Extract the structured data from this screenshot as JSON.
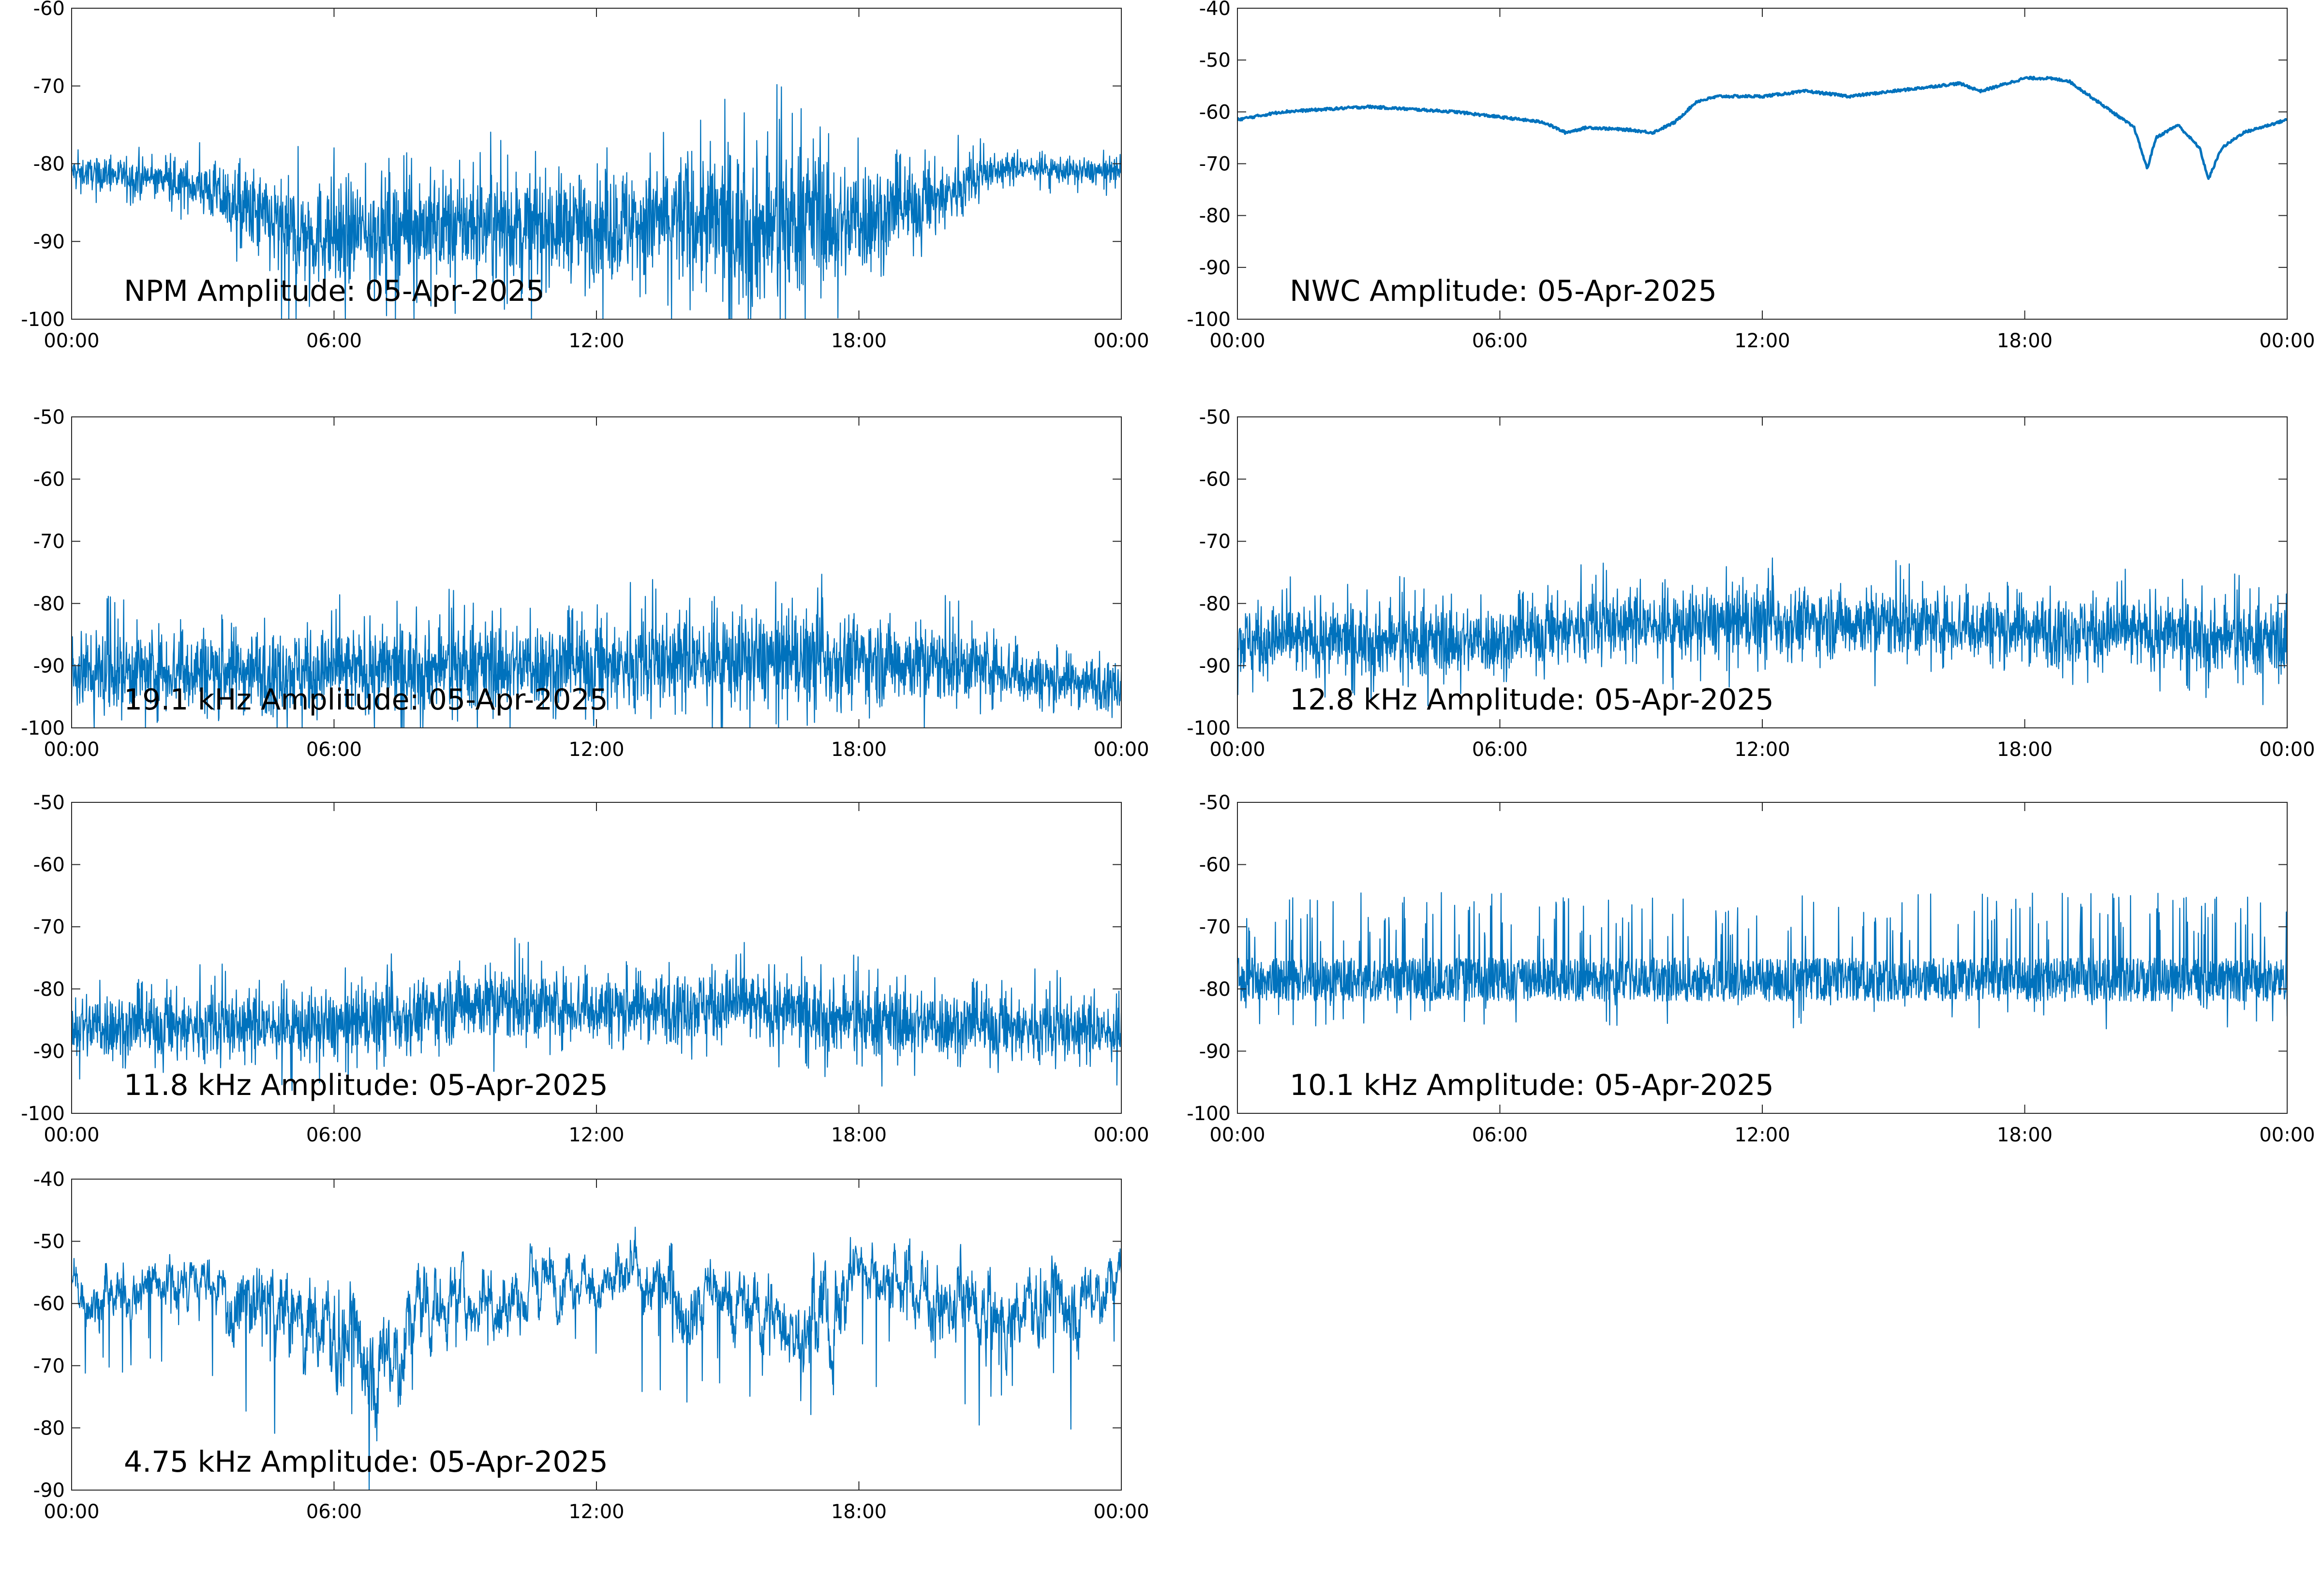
{
  "colors": {
    "series": "#0072bd",
    "axis": "#262626",
    "background": "#ffffff"
  },
  "chart_data": [
    {
      "type": "line",
      "label": "NPM Amplitude: 05-Apr-2025",
      "xticks": [
        "00:00",
        "06:00",
        "12:00",
        "18:00",
        "00:00"
      ],
      "ylim": [
        -100,
        -60
      ],
      "yticks": [
        -100,
        -90,
        -80,
        -70,
        -60
      ],
      "grid": false,
      "style": "noise",
      "x": [
        0,
        1,
        2,
        3,
        4,
        5,
        6,
        7,
        8,
        9,
        10,
        11,
        12,
        13,
        14,
        15,
        16,
        17,
        17.5,
        18,
        19,
        20,
        21,
        22,
        23,
        24
      ],
      "center": [
        -81,
        -81.5,
        -82,
        -83,
        -86,
        -89,
        -89,
        -88.5,
        -88,
        -88,
        -88,
        -88,
        -88,
        -87.5,
        -87,
        -88,
        -88.5,
        -86,
        -88,
        -87,
        -86,
        -84,
        -81,
        -80.5,
        -81,
        -81
      ],
      "spread": [
        1.5,
        2,
        2,
        3,
        5,
        6,
        6,
        6,
        6,
        6,
        6,
        6,
        6,
        7,
        8,
        9,
        9,
        8,
        7,
        7,
        5,
        4,
        2,
        1.5,
        1.5,
        1.5
      ]
    },
    {
      "type": "line",
      "label": "NWC Amplitude: 05-Apr-2025",
      "xticks": [
        "00:00",
        "06:00",
        "12:00",
        "18:00",
        "00:00"
      ],
      "ylim": [
        -100,
        -40
      ],
      "yticks": [
        -100,
        -90,
        -80,
        -70,
        -60,
        -50,
        -40
      ],
      "grid": false,
      "style": "smooth",
      "x": [
        0,
        1,
        2,
        3,
        4,
        5,
        6,
        7,
        7.5,
        8,
        9,
        9.5,
        10,
        10.5,
        11,
        12,
        13,
        14,
        15,
        16,
        16.5,
        17,
        18,
        18.5,
        19,
        19.5,
        20,
        20.5,
        20.8,
        21,
        21.5,
        22,
        22.2,
        22.5,
        23,
        24
      ],
      "center": [
        -61.5,
        -60,
        -59.5,
        -59,
        -59.5,
        -60,
        -61,
        -62,
        -64,
        -63,
        -63.5,
        -64,
        -62,
        -58,
        -57,
        -57,
        -56,
        -57,
        -56,
        -55,
        -54.5,
        -56,
        -53.5,
        -53.5,
        -54,
        -57,
        -60,
        -63,
        -71,
        -65,
        -62.5,
        -67,
        -73,
        -67,
        -64,
        -61.5
      ],
      "spread": [
        0.5
      ]
    },
    {
      "type": "line",
      "label": "19.1 kHz Amplitude: 05-Apr-2025",
      "xticks": [
        "00:00",
        "06:00",
        "12:00",
        "18:00",
        "00:00"
      ],
      "ylim": [
        -100,
        -50
      ],
      "yticks": [
        -100,
        -90,
        -80,
        -70,
        -60,
        -50
      ],
      "grid": false,
      "style": "noise",
      "x": [
        0,
        3,
        6,
        9,
        12,
        15,
        18,
        21,
        22,
        24
      ],
      "center": [
        -91,
        -90.5,
        -91,
        -90,
        -90,
        -89,
        -89,
        -90,
        -92,
        -93
      ],
      "spread": [
        6,
        6,
        6,
        6,
        6.5,
        7,
        6.5,
        5,
        4,
        3.5
      ]
    },
    {
      "type": "line",
      "label": "12.8 kHz Amplitude: 05-Apr-2025",
      "xticks": [
        "00:00",
        "06:00",
        "12:00",
        "18:00",
        "00:00"
      ],
      "ylim": [
        -100,
        -50
      ],
      "yticks": [
        -100,
        -90,
        -80,
        -70,
        -60,
        -50
      ],
      "grid": false,
      "style": "noise",
      "x": [
        0,
        3,
        6,
        8,
        10,
        12,
        15,
        18,
        21,
        24
      ],
      "center": [
        -86,
        -86,
        -86,
        -83.5,
        -83.5,
        -83,
        -83,
        -84,
        -85,
        -86
      ],
      "spread": [
        5,
        5,
        5,
        5,
        5,
        5,
        5,
        5,
        5,
        5
      ]
    },
    {
      "type": "line",
      "label": "11.8 kHz Amplitude: 05-Apr-2025",
      "xticks": [
        "00:00",
        "06:00",
        "12:00",
        "18:00",
        "00:00"
      ],
      "ylim": [
        -100,
        -50
      ],
      "yticks": [
        -100,
        -90,
        -80,
        -70,
        -60,
        -50
      ],
      "grid": false,
      "style": "noise",
      "x": [
        0,
        3,
        6,
        8,
        9,
        12,
        15,
        18,
        21,
        24
      ],
      "center": [
        -86,
        -86,
        -86,
        -84,
        -82,
        -83,
        -82.5,
        -85,
        -86,
        -87
      ],
      "spread": [
        5,
        5,
        5,
        5,
        5.5,
        5,
        5,
        5,
        5,
        4.5
      ]
    },
    {
      "type": "line",
      "label": "10.1 kHz Amplitude: 05-Apr-2025",
      "xticks": [
        "00:00",
        "06:00",
        "12:00",
        "18:00",
        "00:00"
      ],
      "ylim": [
        -100,
        -50
      ],
      "yticks": [
        -100,
        -90,
        -80,
        -70,
        -60,
        -50
      ],
      "grid": false,
      "style": "spiky",
      "x": [
        0,
        6,
        12,
        18,
        24
      ],
      "center": [
        -78.5,
        -78.5,
        -78.5,
        -78.5,
        -78.5
      ],
      "spread": [
        3.5,
        3.5,
        3.5,
        3.5,
        3.5
      ]
    },
    {
      "type": "line",
      "label": "4.75 kHz Amplitude: 05-Apr-2025",
      "xticks": [
        "00:00",
        "06:00",
        "12:00",
        "18:00",
        "00:00"
      ],
      "ylim": [
        -90,
        -40
      ],
      "yticks": [
        -90,
        -80,
        -70,
        -60,
        -50,
        -40
      ],
      "grid": false,
      "style": "dips",
      "x": [
        0,
        1,
        2,
        3,
        4,
        5,
        6,
        7,
        7.5,
        8,
        9,
        10,
        11,
        12,
        13,
        14,
        15,
        16,
        17,
        17.5,
        18,
        19,
        20,
        21,
        22,
        23,
        24
      ],
      "center": [
        -57,
        -59,
        -56,
        -57,
        -60,
        -62,
        -66,
        -70,
        -68,
        -60,
        -58,
        -59,
        -56,
        -56,
        -57,
        -60,
        -60,
        -62,
        -64,
        -62,
        -54,
        -56,
        -60,
        -63,
        -61,
        -60,
        -56
      ],
      "spread": [
        3,
        4,
        3,
        4,
        6,
        7,
        8,
        8,
        8,
        6,
        5,
        5,
        4,
        4,
        4,
        5,
        5,
        6,
        7,
        7,
        4,
        5,
        6,
        6,
        6,
        6,
        4
      ]
    }
  ]
}
